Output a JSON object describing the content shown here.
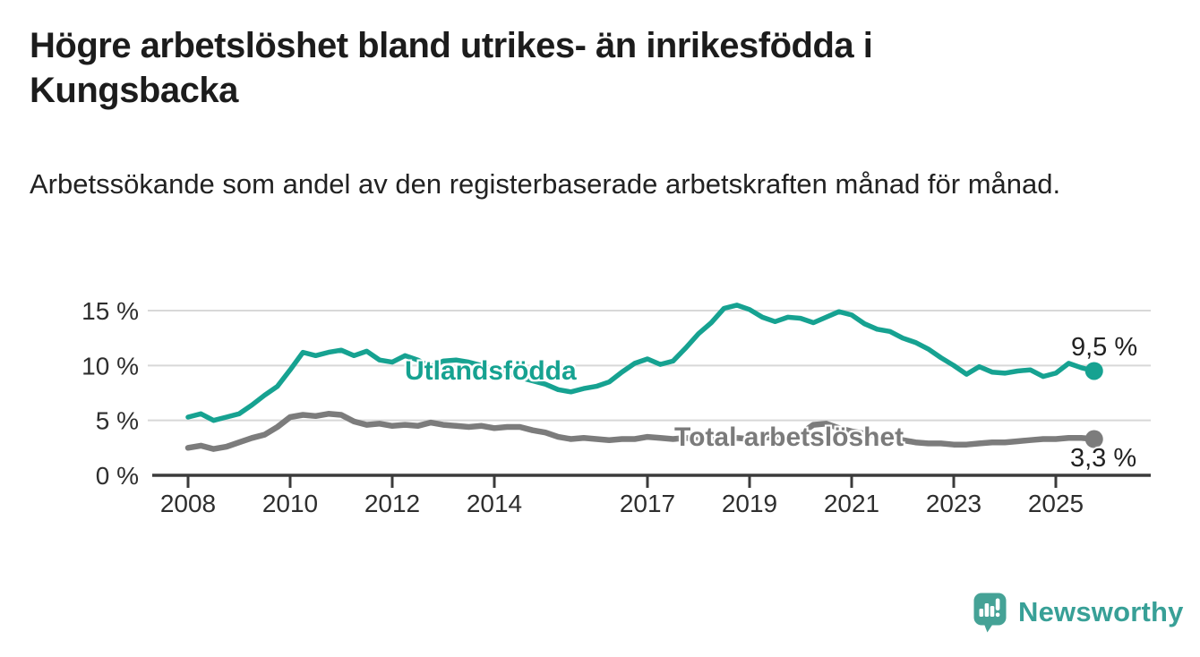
{
  "header": {
    "title": "Högre arbetslöshet bland utrikes- än inrikesfödda i Kungsbacka",
    "subtitle": "Arbetssökande som andel av den registerbaserade arbetskraften månad för månad."
  },
  "branding": {
    "name": "Newsworthy",
    "color": "#38a097"
  },
  "colors": {
    "accent_teal": "#16a291",
    "series_gray": "#7c7c7c",
    "grid": "#d8d8d8",
    "axis": "#3b3b3b",
    "tick_text": "#2e2e2e"
  },
  "chart_data": {
    "type": "line",
    "title": "Högre arbetslöshet bland utrikes- än inrikesfödda i Kungsbacka",
    "xlabel": "",
    "ylabel": "Arbetssökande som andel av den registerbaserade arbetskraften",
    "x_unit": "decimal_year",
    "xlim": [
      2007.6,
      2026.3
    ],
    "ylim": [
      0,
      16.5
    ],
    "grid": "horizontal",
    "legend_position": "inline-labels",
    "yticks": [
      {
        "v": 0,
        "label": "0 %"
      },
      {
        "v": 5,
        "label": "5 %"
      },
      {
        "v": 10,
        "label": "10 %"
      },
      {
        "v": 15,
        "label": "15 %"
      }
    ],
    "xticks": [
      {
        "v": 2008,
        "label": "2008"
      },
      {
        "v": 2010,
        "label": "2010"
      },
      {
        "v": 2012,
        "label": "2012"
      },
      {
        "v": 2014,
        "label": "2014"
      },
      {
        "v": 2017,
        "label": "2017"
      },
      {
        "v": 2019,
        "label": "2019"
      },
      {
        "v": 2021,
        "label": "2021"
      },
      {
        "v": 2023,
        "label": "2023"
      },
      {
        "v": 2025,
        "label": "2025"
      }
    ],
    "x": [
      2008.0,
      2008.25,
      2008.5,
      2008.75,
      2009.0,
      2009.25,
      2009.5,
      2009.75,
      2010.0,
      2010.25,
      2010.5,
      2010.75,
      2011.0,
      2011.25,
      2011.5,
      2011.75,
      2012.0,
      2012.25,
      2012.5,
      2012.75,
      2013.0,
      2013.25,
      2013.5,
      2013.75,
      2014.0,
      2014.25,
      2014.5,
      2014.75,
      2015.0,
      2015.25,
      2015.5,
      2015.75,
      2016.0,
      2016.25,
      2016.5,
      2016.75,
      2017.0,
      2017.25,
      2017.5,
      2017.75,
      2018.0,
      2018.25,
      2018.5,
      2018.75,
      2019.0,
      2019.25,
      2019.5,
      2019.75,
      2020.0,
      2020.25,
      2020.5,
      2020.75,
      2021.0,
      2021.25,
      2021.5,
      2021.75,
      2022.0,
      2022.25,
      2022.5,
      2022.75,
      2023.0,
      2023.25,
      2023.5,
      2023.75,
      2024.0,
      2024.25,
      2024.5,
      2024.75,
      2025.0,
      2025.25,
      2025.5,
      2025.75
    ],
    "series": [
      {
        "name": "Utlandsfödda",
        "color": "#16a291",
        "width": 5.5,
        "end_label": "9,5 %",
        "end_value": 9.5,
        "values": [
          5.3,
          5.6,
          5.0,
          5.3,
          5.6,
          6.4,
          7.3,
          8.1,
          9.6,
          11.2,
          10.9,
          11.2,
          11.4,
          10.9,
          11.3,
          10.5,
          10.3,
          10.9,
          10.5,
          9.9,
          10.4,
          10.5,
          10.3,
          10.0,
          9.6,
          9.4,
          8.9,
          8.6,
          8.3,
          7.8,
          7.6,
          7.9,
          8.1,
          8.5,
          9.4,
          10.2,
          10.6,
          10.1,
          10.4,
          11.6,
          12.9,
          13.9,
          15.2,
          15.5,
          15.1,
          14.4,
          14.0,
          14.4,
          14.3,
          13.9,
          14.4,
          14.9,
          14.6,
          13.8,
          13.3,
          13.1,
          12.5,
          12.1,
          11.5,
          10.7,
          10.0,
          9.2,
          9.9,
          9.4,
          9.3,
          9.5,
          9.6,
          9.0,
          9.3,
          10.2,
          9.8,
          9.5
        ]
      },
      {
        "name": "Total arbetslöshet",
        "color": "#7c7c7c",
        "width": 6.5,
        "end_label": "3,3 %",
        "end_value": 3.3,
        "values": [
          2.5,
          2.7,
          2.4,
          2.6,
          3.0,
          3.4,
          3.7,
          4.4,
          5.3,
          5.5,
          5.4,
          5.6,
          5.5,
          4.9,
          4.6,
          4.7,
          4.5,
          4.6,
          4.5,
          4.8,
          4.6,
          4.5,
          4.4,
          4.5,
          4.3,
          4.4,
          4.4,
          4.1,
          3.9,
          3.5,
          3.3,
          3.4,
          3.3,
          3.2,
          3.3,
          3.3,
          3.5,
          3.4,
          3.3,
          3.4,
          3.3,
          3.2,
          3.3,
          3.4,
          3.3,
          3.4,
          3.5,
          3.6,
          3.8,
          4.6,
          4.7,
          4.3,
          4.0,
          3.8,
          3.6,
          3.4,
          3.2,
          3.0,
          2.9,
          2.9,
          2.8,
          2.8,
          2.9,
          3.0,
          3.0,
          3.1,
          3.2,
          3.3,
          3.3,
          3.4,
          3.4,
          3.3
        ]
      }
    ]
  }
}
